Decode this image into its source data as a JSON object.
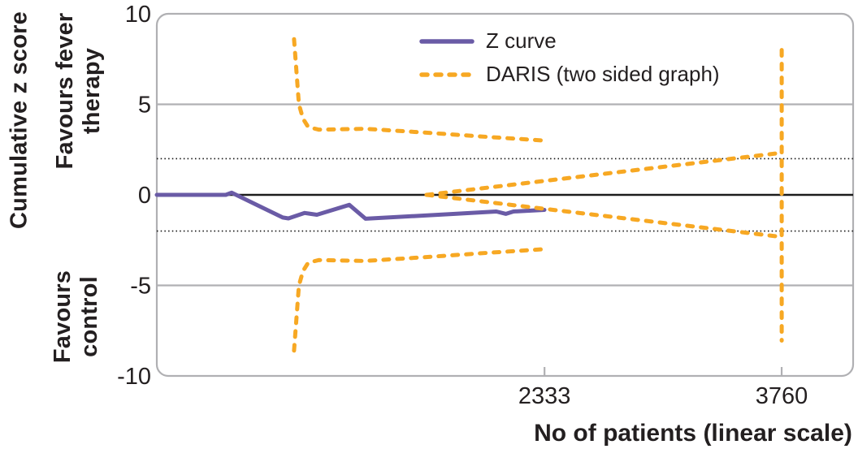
{
  "chart_data": {
    "type": "line",
    "title": "",
    "xlabel": "No of patients (linear scale)",
    "ylabel": "Cumulative z score",
    "region_labels": {
      "top": "Favours fever\ntherapy",
      "bottom": "Favours\ncontrol"
    },
    "xlim": [
      0,
      4190
    ],
    "ylim": [
      -10,
      10
    ],
    "grid": "horizontal-reference-lines-only",
    "legend_position": "top-center-inside",
    "colors": {
      "z_curve": "#6a5ba6",
      "daris": "#f7a823",
      "zero_line": "#1c1c1c",
      "reference_gray": "#b0b0b3",
      "text": "#231f20"
    },
    "xticks": [
      {
        "value": 2333,
        "label": "2333"
      },
      {
        "value": 3760,
        "label": "3760"
      }
    ],
    "yticks": [
      {
        "value": 10,
        "label": "10"
      },
      {
        "value": 5,
        "label": "5"
      },
      {
        "value": 0,
        "label": "0"
      },
      {
        "value": -5,
        "label": "-5"
      },
      {
        "value": -10,
        "label": "-10"
      }
    ],
    "reference_lines": [
      {
        "y": 5,
        "style": "gray"
      },
      {
        "y": 2,
        "style": "dotted"
      },
      {
        "y": 0,
        "style": "black"
      },
      {
        "y": -2,
        "style": "dotted"
      },
      {
        "y": -5,
        "style": "gray"
      }
    ],
    "legend": [
      {
        "label": "Z curve",
        "color": "#6a5ba6",
        "dash": "solid"
      },
      {
        "label": "DARIS (two sided graph)",
        "color": "#f7a823",
        "dash": "dashed"
      }
    ],
    "lines": [
      {
        "name": "z-curve",
        "series": "Z curve",
        "color": "#6a5ba6",
        "dash": "solid",
        "width": 5,
        "points": [
          [
            0,
            0
          ],
          [
            415,
            0
          ],
          [
            450,
            0.12
          ],
          [
            758,
            -1.25
          ],
          [
            792,
            -1.3
          ],
          [
            890,
            -1.0
          ],
          [
            963,
            -1.1
          ],
          [
            1158,
            -0.55
          ],
          [
            1256,
            -1.32
          ],
          [
            1794,
            -1.05
          ],
          [
            2043,
            -0.92
          ],
          [
            2101,
            -1.05
          ],
          [
            2146,
            -0.92
          ],
          [
            2332,
            -0.83
          ]
        ]
      },
      {
        "name": "daris-upper-boundary",
        "series": "DARIS (two sided graph)",
        "color": "#f7a823",
        "dash": "dashed",
        "width": 5,
        "points": [
          [
            826,
            8.6
          ],
          [
            855,
            5.0
          ],
          [
            880,
            4.2
          ],
          [
            911,
            3.75
          ],
          [
            975,
            3.6
          ],
          [
            1254,
            3.65
          ],
          [
            1600,
            3.45
          ],
          [
            1990,
            3.2
          ],
          [
            2330,
            3.0
          ]
        ]
      },
      {
        "name": "daris-lower-boundary",
        "series": "DARIS (two sided graph)",
        "color": "#f7a823",
        "dash": "dashed",
        "width": 5,
        "points": [
          [
            826,
            -8.6
          ],
          [
            855,
            -5.0
          ],
          [
            880,
            -4.2
          ],
          [
            911,
            -3.75
          ],
          [
            975,
            -3.6
          ],
          [
            1254,
            -3.65
          ],
          [
            1600,
            -3.45
          ],
          [
            1990,
            -3.2
          ],
          [
            2330,
            -3.0
          ]
        ]
      },
      {
        "name": "daris-futility-upper",
        "series": "DARIS (two sided graph)",
        "color": "#f7a823",
        "dash": "dashed",
        "width": 5,
        "points": [
          [
            1623,
            0
          ],
          [
            3739,
            2.3
          ],
          [
            3760,
            2.35
          ]
        ]
      },
      {
        "name": "daris-futility-lower",
        "series": "DARIS (two sided graph)",
        "color": "#f7a823",
        "dash": "dashed",
        "width": 5,
        "points": [
          [
            1623,
            0
          ],
          [
            3739,
            -2.3
          ],
          [
            3760,
            -2.35
          ]
        ]
      },
      {
        "name": "daris-terminal-vertical",
        "series": "DARIS (two sided graph)",
        "color": "#f7a823",
        "dash": "dashed",
        "width": 5,
        "points": [
          [
            3760,
            8.0
          ],
          [
            3760,
            -8.05
          ]
        ]
      }
    ]
  }
}
